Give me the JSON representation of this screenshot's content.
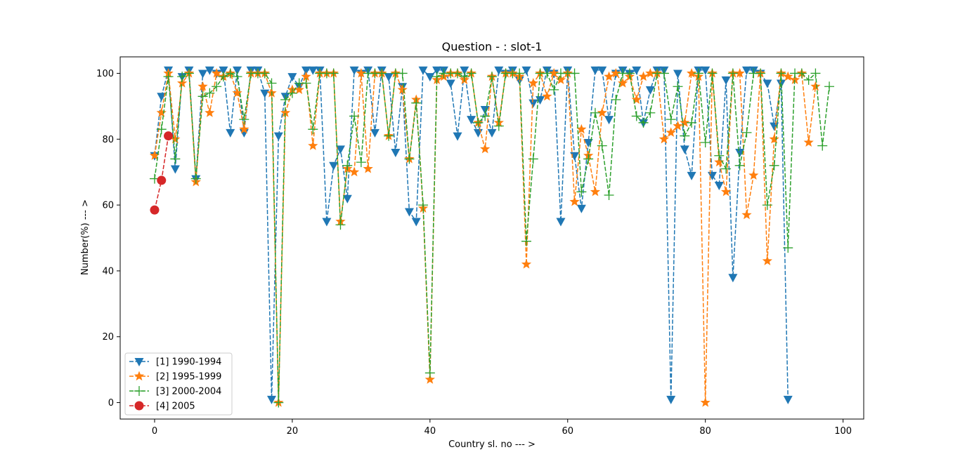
{
  "chart_data": {
    "type": "line",
    "title": "Question - : slot-1",
    "xlabel": "Country sl. no --- >",
    "ylabel": "Number(%) --- >",
    "xlim": [
      -5,
      103
    ],
    "ylim": [
      -5,
      105
    ],
    "xticks": [
      0,
      20,
      40,
      60,
      80,
      100
    ],
    "yticks": [
      0,
      20,
      40,
      60,
      80,
      100
    ],
    "grid": false,
    "legend_position": "lower-left",
    "series": [
      {
        "name": "[1] 1990-1994",
        "color": "#1f77b4",
        "marker": "triangle-down",
        "x": [
          0,
          1,
          2,
          3,
          4,
          5,
          6,
          7,
          8,
          9,
          10,
          11,
          12,
          13,
          14,
          15,
          16,
          17,
          18,
          19,
          20,
          21,
          22,
          23,
          24,
          25,
          26,
          27,
          28,
          29,
          30,
          31,
          32,
          33,
          34,
          35,
          36,
          37,
          38,
          39,
          40,
          41,
          42,
          43,
          44,
          45,
          46,
          47,
          48,
          49,
          50,
          51,
          52,
          53,
          54,
          55,
          56,
          57,
          58,
          59,
          60,
          61,
          62,
          63,
          64,
          65,
          66,
          67,
          68,
          69,
          70,
          71,
          72,
          73,
          74,
          75,
          76,
          77,
          78,
          79,
          80,
          81,
          82,
          83,
          84,
          85,
          86,
          87,
          88,
          89,
          90,
          91,
          92
        ],
        "values": [
          75,
          93,
          101,
          71,
          99,
          101,
          68,
          100,
          101,
          100,
          101,
          82,
          101,
          82,
          101,
          101,
          94,
          1,
          81,
          93,
          99,
          96,
          101,
          101,
          101,
          55,
          72,
          77,
          62,
          101,
          100,
          101,
          82,
          101,
          99,
          76,
          96,
          58,
          55,
          101,
          99,
          101,
          101,
          97,
          81,
          101,
          86,
          82,
          89,
          82,
          101,
          100,
          101,
          98,
          101,
          91,
          92,
          101,
          100,
          55,
          101,
          75,
          59,
          79,
          101,
          101,
          86,
          100,
          101,
          100,
          101,
          85,
          95,
          101,
          101,
          1,
          100,
          77,
          69,
          101,
          101,
          69,
          66,
          98,
          38,
          76,
          101,
          101,
          100,
          97,
          84,
          97,
          1
        ]
      },
      {
        "name": "[2] 1995-1999",
        "color": "#ff7f0e",
        "marker": "star",
        "x": [
          0,
          1,
          2,
          3,
          4,
          5,
          6,
          7,
          8,
          9,
          10,
          11,
          12,
          13,
          14,
          15,
          16,
          17,
          18,
          19,
          20,
          21,
          22,
          23,
          24,
          25,
          26,
          27,
          28,
          29,
          30,
          31,
          32,
          33,
          34,
          35,
          36,
          37,
          38,
          39,
          40,
          41,
          42,
          43,
          44,
          45,
          46,
          47,
          48,
          49,
          50,
          51,
          52,
          53,
          54,
          55,
          56,
          57,
          58,
          59,
          60,
          61,
          62,
          63,
          64,
          65,
          66,
          67,
          68,
          69,
          70,
          71,
          72,
          73,
          74,
          75,
          76,
          77,
          78,
          79,
          80,
          81,
          82,
          83,
          84,
          85,
          86,
          87,
          88,
          89,
          90,
          91,
          92,
          93,
          94,
          95,
          96
        ],
        "values": [
          75,
          88,
          100,
          80,
          97,
          100,
          67,
          96,
          88,
          100,
          99,
          100,
          94,
          83,
          100,
          100,
          100,
          94,
          0,
          88,
          95,
          95,
          99,
          78,
          100,
          100,
          100,
          55,
          71,
          70,
          100,
          71,
          100,
          100,
          81,
          100,
          95,
          74,
          92,
          59,
          7,
          98,
          99,
          100,
          100,
          98,
          100,
          85,
          77,
          99,
          85,
          100,
          100,
          99,
          42,
          97,
          100,
          93,
          100,
          98,
          100,
          61,
          83,
          75,
          64,
          88,
          99,
          100,
          97,
          99,
          92,
          99,
          100,
          100,
          80,
          82,
          84,
          85,
          100,
          99,
          0,
          100,
          73,
          64,
          100,
          100,
          57,
          69,
          100,
          43,
          80,
          100,
          99,
          98,
          100,
          79,
          96
        ]
      },
      {
        "name": "[3] 2000-2004",
        "color": "#2ca02c",
        "marker": "plus",
        "x": [
          0,
          1,
          2,
          3,
          4,
          5,
          6,
          7,
          8,
          9,
          10,
          11,
          12,
          13,
          14,
          15,
          16,
          17,
          18,
          19,
          20,
          21,
          22,
          23,
          24,
          25,
          26,
          27,
          28,
          29,
          30,
          31,
          32,
          33,
          34,
          35,
          36,
          37,
          38,
          39,
          40,
          41,
          42,
          43,
          44,
          45,
          46,
          47,
          48,
          49,
          50,
          51,
          52,
          53,
          54,
          55,
          56,
          57,
          58,
          59,
          60,
          61,
          62,
          63,
          64,
          65,
          66,
          67,
          68,
          69,
          70,
          71,
          72,
          73,
          74,
          75,
          76,
          77,
          78,
          79,
          80,
          81,
          82,
          83,
          84,
          85,
          86,
          87,
          88,
          89,
          90,
          91,
          92,
          93,
          94,
          95,
          96,
          97,
          98
        ],
        "values": [
          68,
          83,
          99,
          74,
          99,
          100,
          68,
          93,
          94,
          96,
          99,
          100,
          99,
          86,
          100,
          100,
          100,
          97,
          0,
          92,
          94,
          97,
          97,
          83,
          100,
          100,
          100,
          54,
          72,
          87,
          73,
          100,
          100,
          100,
          81,
          100,
          100,
          74,
          91,
          60,
          9,
          99,
          100,
          100,
          100,
          99,
          100,
          85,
          87,
          99,
          84,
          100,
          100,
          100,
          49,
          74,
          100,
          100,
          95,
          100,
          100,
          100,
          64,
          74,
          88,
          78,
          63,
          92,
          100,
          100,
          87,
          85,
          88,
          100,
          100,
          86,
          96,
          81,
          85,
          100,
          79,
          100,
          75,
          71,
          100,
          72,
          82,
          100,
          100,
          60,
          72,
          100,
          47,
          100,
          100,
          98,
          100,
          78,
          96
        ]
      },
      {
        "name": "[4] 2005",
        "color": "#d62728",
        "marker": "circle",
        "x": [
          0,
          1,
          2
        ],
        "values": [
          58.5,
          67.5,
          81
        ]
      }
    ]
  }
}
